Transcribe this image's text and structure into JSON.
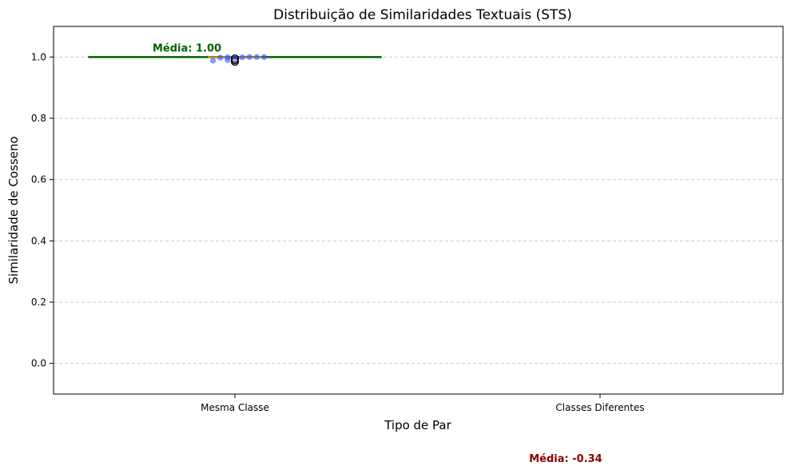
{
  "chart_data": {
    "type": "box",
    "title": "Distribuição de Similaridades Textuais (STS)",
    "xlabel": "Tipo de Par",
    "ylabel": "Similaridade de Cosseno",
    "categories": [
      "Mesma Classe",
      "Classes Diferentes"
    ],
    "ylim": [
      -0.1,
      1.1
    ],
    "yticks": [
      0.0,
      0.2,
      0.4,
      0.6,
      0.8,
      1.0
    ],
    "ytick_labels": [
      "0.0",
      "0.2",
      "0.4",
      "0.6",
      "0.8",
      "1.0"
    ],
    "grid": "y-dashed",
    "series": [
      {
        "category": "Mesma Classe",
        "mean": 1.0,
        "mean_label": "Média: 1.00",
        "median": 1.0,
        "q1": 1.0,
        "q3": 1.0,
        "outliers": [
          0.995,
          0.99,
          0.985
        ],
        "points": [
          {
            "x_offset": -0.06,
            "y": 0.988
          },
          {
            "x_offset": -0.04,
            "y": 0.998
          },
          {
            "x_offset": -0.02,
            "y": 0.999
          },
          {
            "x_offset": -0.02,
            "y": 0.99
          },
          {
            "x_offset": 0.0,
            "y": 0.997
          },
          {
            "x_offset": 0.02,
            "y": 0.999
          },
          {
            "x_offset": 0.04,
            "y": 1.0
          },
          {
            "x_offset": 0.06,
            "y": 1.0
          },
          {
            "x_offset": 0.08,
            "y": 1.0
          }
        ]
      },
      {
        "category": "Classes Diferentes",
        "mean": -0.34,
        "mean_label": "Média: -0.34"
      }
    ],
    "colors": {
      "mean_line_same": "#006400",
      "mean_text_same": "#006400",
      "mean_text_diff": "#8b0000",
      "median": "#ff8c00",
      "points": "#3355ff",
      "grid": "#c8c8c8"
    }
  }
}
